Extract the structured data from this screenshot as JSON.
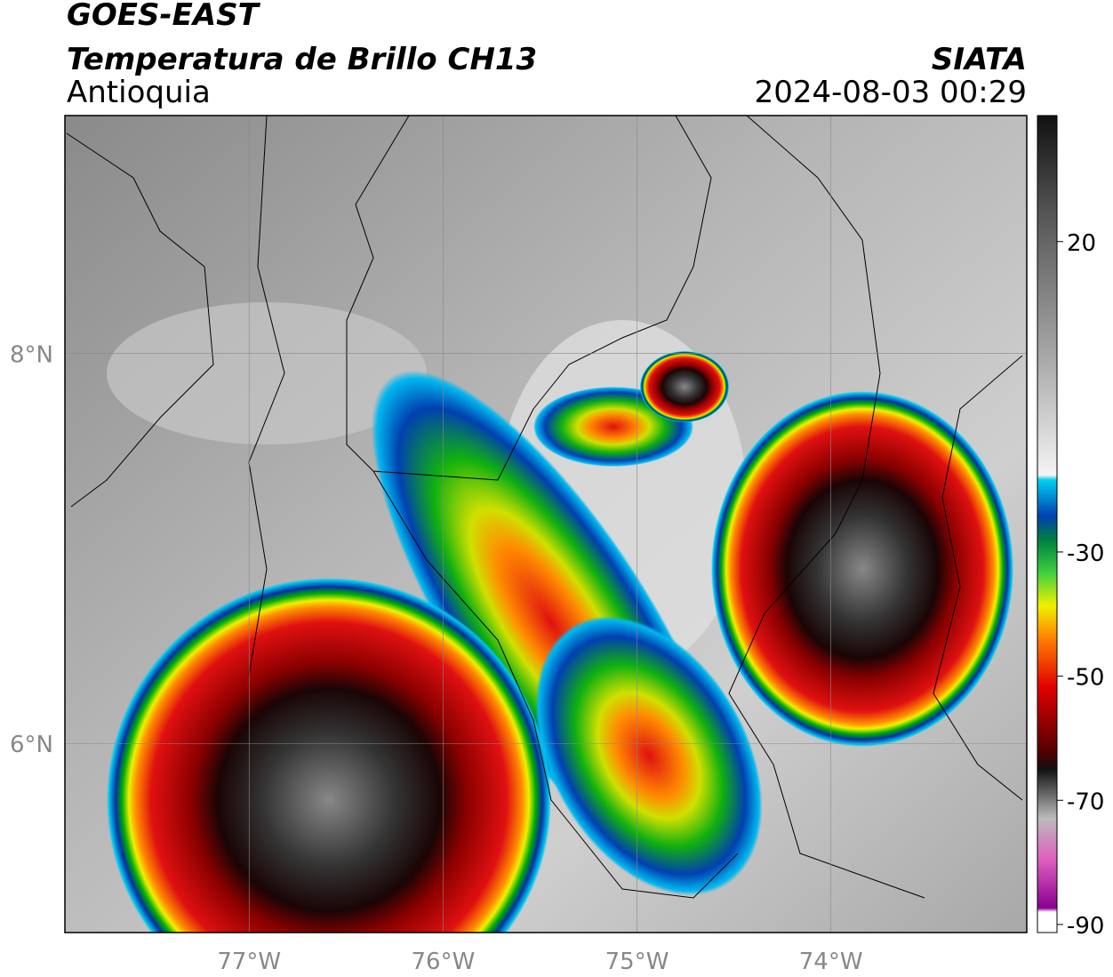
{
  "header": {
    "satellite": "GOES-EAST",
    "product": "Temperatura de Brillo CH13",
    "region": "Antioquia",
    "source": "SIATA",
    "datetime": "2024-08-03 00:29"
  },
  "map": {
    "xlim": [
      -77.95,
      -72.99
    ],
    "ylim": [
      5.03,
      9.22
    ],
    "xticks": [
      {
        "value": -77,
        "label": "77°W"
      },
      {
        "value": -76,
        "label": "76°W"
      },
      {
        "value": -75,
        "label": "75°W"
      },
      {
        "value": -74,
        "label": "74°W"
      }
    ],
    "yticks": [
      {
        "value": 8,
        "label": "8°N"
      },
      {
        "value": 6,
        "label": "6°N"
      }
    ]
  },
  "colorbar": {
    "ylim": [
      -91.3,
      40.3
    ],
    "yticks": [
      20,
      -30,
      -50,
      -70,
      -90
    ]
  }
}
